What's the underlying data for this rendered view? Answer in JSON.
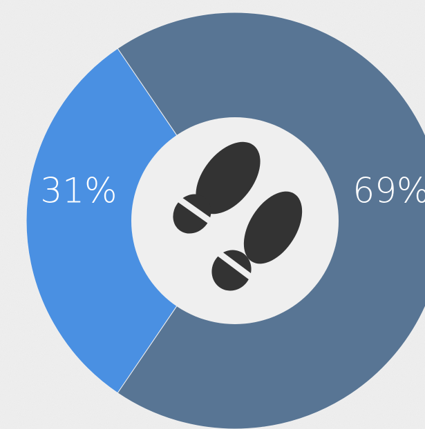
{
  "chart_data": {
    "type": "donut",
    "values": [
      31,
      69
    ],
    "value_labels": [
      "31%",
      "69%"
    ],
    "colors": [
      "#4a90e2",
      "#587594"
    ]
  }
}
